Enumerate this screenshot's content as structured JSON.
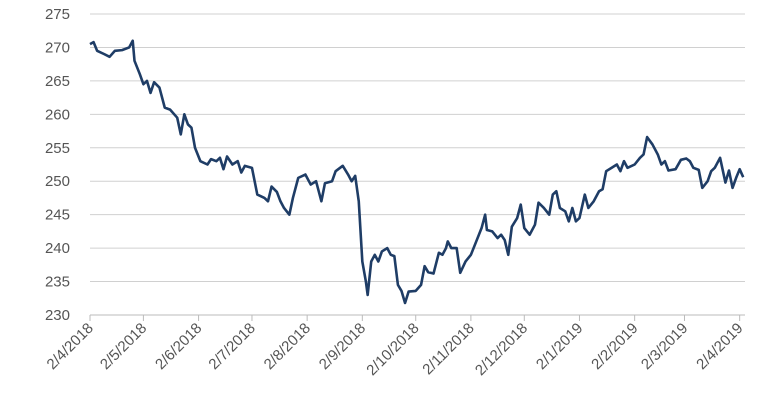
{
  "chart_data": {
    "type": "line",
    "xlim": [
      "2/4/2018",
      "5/4/2019"
    ],
    "xticks": [
      "2/4/2018",
      "2/5/2018",
      "2/6/2018",
      "2/7/2018",
      "2/8/2018",
      "2/9/2018",
      "2/10/2018",
      "2/11/2018",
      "2/12/2018",
      "2/1/2019",
      "2/2/2019",
      "2/3/2019",
      "2/4/2019"
    ],
    "ylim": [
      230,
      275
    ],
    "yticks": [
      230,
      235,
      240,
      245,
      250,
      255,
      260,
      265,
      270,
      275
    ],
    "grid": true,
    "x": [
      "2/4/2018",
      "4/4/2018",
      "6/4/2018",
      "10/4/2018",
      "13/4/2018",
      "16/4/2018",
      "20/4/2018",
      "24/4/2018",
      "26/4/2018",
      "27/4/2018",
      "30/4/2018",
      "2/5/2018",
      "4/5/2018",
      "6/5/2018",
      "8/5/2018",
      "11/5/2018",
      "14/5/2018",
      "17/5/2018",
      "21/5/2018",
      "23/5/2018",
      "25/5/2018",
      "27/5/2018",
      "29/5/2018",
      "31/5/2018",
      "3/6/2018",
      "7/6/2018",
      "9/6/2018",
      "12/6/2018",
      "14/6/2018",
      "16/6/2018",
      "18/6/2018",
      "21/6/2018",
      "24/6/2018",
      "26/6/2018",
      "28/6/2018",
      "2/7/2018",
      "5/7/2018",
      "9/7/2018",
      "11/7/2018",
      "13/7/2018",
      "16/7/2018",
      "18/7/2018",
      "20/7/2018",
      "23/7/2018",
      "25/7/2018",
      "28/7/2018",
      "1/8/2018",
      "4/8/2018",
      "7/8/2018",
      "10/8/2018",
      "12/8/2018",
      "16/8/2018",
      "18/8/2018",
      "22/8/2018",
      "25/8/2018",
      "27/8/2018",
      "29/8/2018",
      "31/8/2018",
      "2/9/2018",
      "4/9/2018",
      "5/9/2018",
      "7/9/2018",
      "9/9/2018",
      "11/9/2018",
      "13/9/2018",
      "16/9/2018",
      "18/9/2018",
      "20/9/2018",
      "22/9/2018",
      "24/9/2018",
      "26/9/2018",
      "28/9/2018",
      "2/10/2018",
      "5/10/2018",
      "7/10/2018",
      "9/10/2018",
      "12/10/2018",
      "15/10/2018",
      "17/10/2018",
      "19/10/2018",
      "20/10/2018",
      "22/10/2018",
      "25/10/2018",
      "27/10/2018",
      "30/10/2018",
      "2/11/2018",
      "5/11/2018",
      "8/11/2018",
      "10/11/2018",
      "11/11/2018",
      "14/11/2018",
      "17/11/2018",
      "19/11/2018",
      "21/11/2018",
      "23/11/2018",
      "25/11/2018",
      "28/11/2018",
      "30/11/2018",
      "2/12/2018",
      "5/12/2018",
      "8/12/2018",
      "10/12/2018",
      "13/12/2018",
      "16/12/2018",
      "18/12/2018",
      "20/12/2018",
      "22/12/2018",
      "25/12/2018",
      "27/12/2018",
      "29/12/2018",
      "31/12/2018",
      "2/1/2019",
      "5/1/2019",
      "7/1/2019",
      "10/1/2019",
      "13/1/2019",
      "15/1/2019",
      "17/1/2019",
      "20/1/2019",
      "23/1/2019",
      "25/1/2019",
      "27/1/2019",
      "29/1/2019",
      "2/2/2019",
      "5/2/2019",
      "7/2/2019",
      "9/2/2019",
      "12/2/2019",
      "15/2/2019",
      "17/2/2019",
      "19/2/2019",
      "21/2/2019",
      "25/2/2019",
      "28/2/2019",
      "3/3/2019",
      "5/3/2019",
      "7/3/2019",
      "10/3/2019",
      "12/3/2019",
      "15/3/2019",
      "17/3/2019",
      "19/3/2019",
      "22/3/2019",
      "25/3/2019",
      "27/3/2019",
      "29/3/2019",
      "31/3/2019",
      "2/4/2019",
      "4/4/2019"
    ],
    "series": [
      {
        "color": "#1f3d66",
        "values": [
          270.5,
          270.8,
          269.5,
          269,
          268.6,
          269.5,
          269.6,
          270,
          271,
          268,
          266,
          264.5,
          265,
          263.2,
          264.8,
          264,
          261,
          260.7,
          259.5,
          257,
          260,
          258.5,
          258,
          255,
          253,
          252.5,
          253.3,
          253,
          253.5,
          251.8,
          253.7,
          252.5,
          253,
          251.3,
          252.3,
          252,
          248,
          247.5,
          247,
          249.2,
          248.4,
          247,
          246,
          245,
          247.5,
          250.5,
          251,
          249.5,
          250,
          247,
          249.7,
          250,
          251.5,
          252.3,
          251,
          250,
          250.8,
          247,
          238,
          235,
          233,
          238,
          239,
          238,
          239.5,
          240,
          239,
          238.8,
          234.5,
          233.6,
          231.8,
          233.5,
          233.6,
          234.5,
          237.3,
          236.4,
          236.2,
          239.3,
          239,
          240,
          241,
          240,
          240,
          236.3,
          238,
          239,
          241,
          243,
          245,
          242.7,
          242.5,
          241.5,
          242,
          241.2,
          239,
          243.2,
          244.5,
          246.5,
          243,
          242,
          243.5,
          246.8,
          246,
          245,
          248,
          248.5,
          246,
          245.5,
          244,
          246,
          244,
          244.5,
          248,
          246,
          247,
          248.5,
          248.8,
          251.5,
          252,
          252.5,
          251.5,
          253,
          252,
          252.5,
          253.5,
          254,
          256.6,
          255.5,
          254,
          252.5,
          253,
          251.6,
          251.8,
          253.2,
          253.4,
          253,
          252,
          251.7,
          249,
          250,
          251.5,
          252,
          253.5,
          249.8,
          251.6,
          249,
          250.5,
          251.8,
          250.6
        ]
      }
    ]
  }
}
